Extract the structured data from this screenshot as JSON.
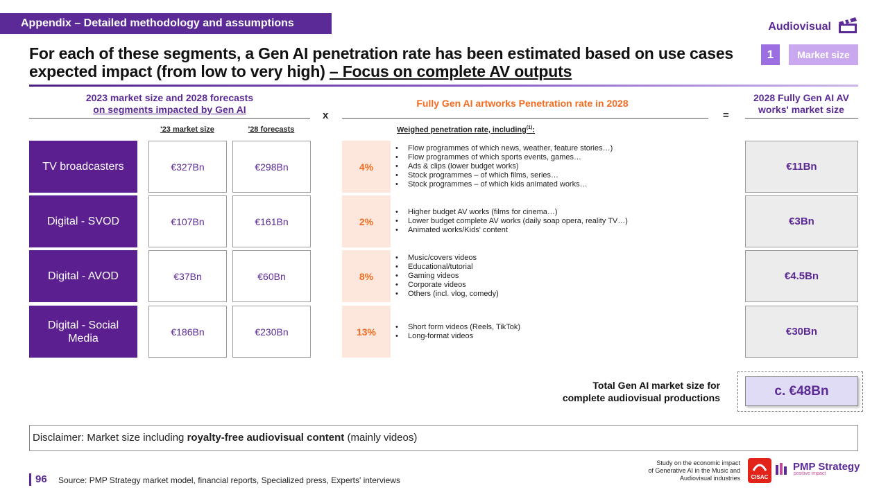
{
  "header": {
    "tag": "Appendix – Detailed methodology and assumptions",
    "section": "Audiovisual",
    "title_part1": "For each of these segments, a Gen AI penetration rate has been estimated based on use cases expected impact (from low to very high) ",
    "title_focus": "– Focus on complete AV outputs",
    "market_size_number": "1",
    "market_size_label": "Market size"
  },
  "columns": {
    "left_head_line1": "2023 market size and 2028 forecasts",
    "left_head_line2": "on segments impacted by Gen AI",
    "multiply": "x",
    "mid_head": "Fully Gen AI artworks  Penetration rate in 2028",
    "equals": "=",
    "right_head": "2028 Fully Gen AI AV works' market size",
    "sub_23": "'23 market size",
    "sub_28": "'28 forecasts",
    "sub_weighed": "Weighed penetration rate, including",
    "sub_weighed_note": "(1)",
    "sub_weighed_colon": ":"
  },
  "rows": [
    {
      "segment": "TV broadcasters",
      "m23": "€327Bn",
      "m28": "€298Bn",
      "rate": "4%",
      "uses": [
        "Flow programmes of which news, weather, feature stories…)",
        "Flow programmes of which sports events, games…",
        "Ads & clips (lower budget works)",
        "Stock programmes – of which films, series…",
        "Stock programmes – of which kids animated works…"
      ],
      "result": "€11Bn"
    },
    {
      "segment": "Digital - SVOD",
      "m23": "€107Bn",
      "m28": "€161Bn",
      "rate": "2%",
      "uses": [
        "Higher budget AV works (films for cinema…)",
        "Lower budget complete AV works (daily soap opera, reality TV…)",
        "Animated works/Kids' content"
      ],
      "result": "€3Bn"
    },
    {
      "segment": "Digital - AVOD",
      "m23": "€37Bn",
      "m28": "€60Bn",
      "rate": "8%",
      "uses": [
        "Music/covers videos",
        "Educational/tutorial",
        "Gaming videos",
        "Corporate videos",
        "Others (incl. vlog, comedy)"
      ],
      "result": "€4.5Bn"
    },
    {
      "segment": "Digital - Social Media",
      "m23": "€186Bn",
      "m28": "€230Bn",
      "rate": "13%",
      "uses": [
        "Short form videos (Reels, TikTok)",
        "Long-format videos"
      ],
      "result": "€30Bn"
    }
  ],
  "total": {
    "label_line1": "Total Gen AI market size for",
    "label_line2": "complete audiovisual productions",
    "value": "c. €48Bn"
  },
  "disclaimer": {
    "prefix": "Disclaimer: Market size including ",
    "bold": "royalty-free audiovisual content",
    "suffix": " (mainly videos)"
  },
  "footer": {
    "page": "96",
    "source": "Source:  PMP Strategy market model, financial reports, Specialized press, Experts' interviews",
    "study_line1": "Study on the economic impact",
    "study_line2": "of Generative AI in the Music and",
    "study_line3": "Audiovisual industries",
    "cisac": "CISAC",
    "pmp_name": "PMP Strategy",
    "pmp_tag": "positive impact"
  },
  "colors": {
    "purple": "#5b2a96",
    "segment_purple": "#5b1f8f",
    "orange": "#f26b21",
    "rate_bg": "#fde7dc"
  }
}
